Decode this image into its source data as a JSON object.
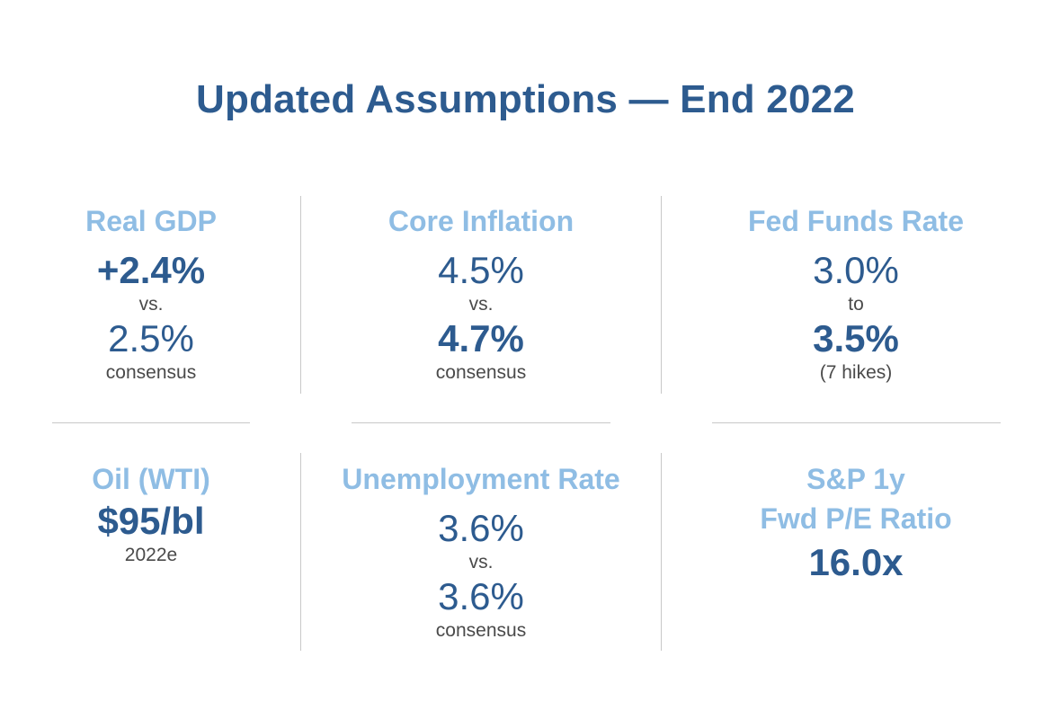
{
  "title": "Updated Assumptions — End 2022",
  "cards": {
    "real_gdp": {
      "heading": "Real GDP",
      "primary": "+2.4%",
      "connector": "vs.",
      "secondary": "2.5%",
      "note": "consensus"
    },
    "core_inflation": {
      "heading": "Core Inflation",
      "primary": "4.5%",
      "connector": "vs.",
      "secondary": "4.7%",
      "note": "consensus"
    },
    "fed_funds": {
      "heading": "Fed Funds Rate",
      "primary": "3.0%",
      "connector": "to",
      "secondary": "3.5%",
      "note": "(7 hikes)"
    },
    "oil": {
      "heading": "Oil (WTI)",
      "primary": "$95/bl",
      "note": "2022e"
    },
    "unemployment": {
      "heading": "Unemployment Rate",
      "primary": "3.6%",
      "connector": "vs.",
      "secondary": "3.6%",
      "note": "consensus"
    },
    "sp_pe": {
      "heading_line1": "S&P 1y",
      "heading_line2": "Fwd P/E Ratio",
      "primary": "16.0x"
    }
  },
  "colors": {
    "title": "#2d5b8f",
    "heading": "#8fbde4",
    "value": "#2d5b8f",
    "note": "#4a4a4a",
    "divider": "#c8c8c8"
  }
}
